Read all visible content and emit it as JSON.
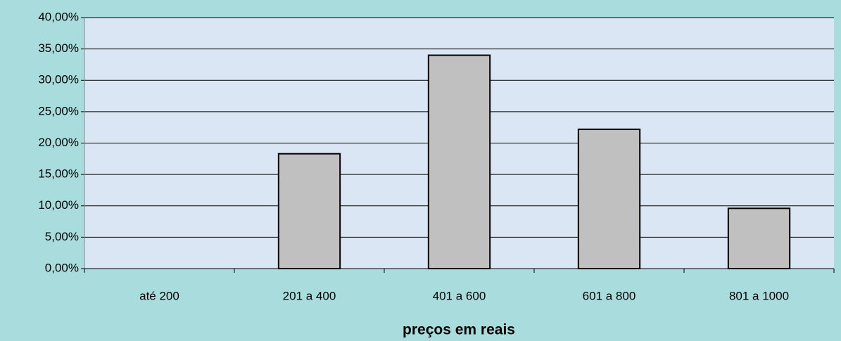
{
  "chart_data": {
    "type": "bar",
    "x_label": "preços em reais",
    "categories": [
      "até 200",
      "201 a 400",
      "401 a 600",
      "601 a 800",
      "801 a 1000"
    ],
    "values": [
      0,
      18.3,
      34,
      22.2,
      9.6
    ],
    "color": "#c0c0c0",
    "ylim": [
      0,
      40
    ],
    "yticks": [
      {
        "value": 0,
        "label": "0,00%"
      },
      {
        "value": 5,
        "label": "5,00%"
      },
      {
        "value": 10,
        "label": "10,00%"
      },
      {
        "value": 15,
        "label": "15,00%"
      },
      {
        "value": 20,
        "label": "20,00%"
      },
      {
        "value": 25,
        "label": "25,00%"
      },
      {
        "value": 30,
        "label": "30,00%"
      },
      {
        "value": 35,
        "label": "35,00%"
      },
      {
        "value": 40,
        "label": "40,00%"
      }
    ],
    "grid": true
  }
}
